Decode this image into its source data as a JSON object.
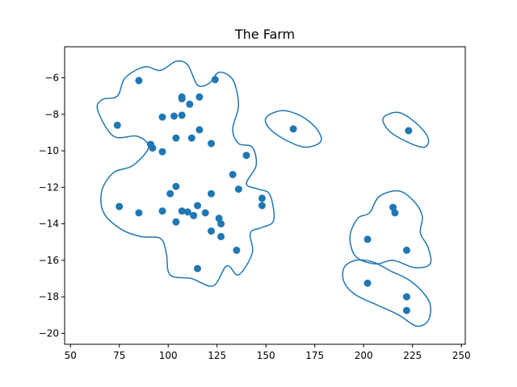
{
  "chart_data": {
    "type": "scatter",
    "title": "The Farm",
    "xlabel": "",
    "ylabel": "",
    "xlim": [
      47,
      252
    ],
    "ylim": [
      -20.6,
      -4.3
    ],
    "xticks": [
      50,
      75,
      100,
      125,
      150,
      175,
      200,
      225,
      250
    ],
    "yticks": [
      -6,
      -8,
      -10,
      -12,
      -14,
      -16,
      -18,
      -20
    ],
    "grid": false,
    "color": "#1f77b4",
    "points": [
      [
        85,
        -6.15
      ],
      [
        124,
        -6.1
      ],
      [
        107,
        -7.05
      ],
      [
        107,
        -7.15
      ],
      [
        116,
        -7.05
      ],
      [
        111,
        -7.45
      ],
      [
        97,
        -8.15
      ],
      [
        103,
        -8.1
      ],
      [
        107,
        -8.05
      ],
      [
        74,
        -8.6
      ],
      [
        116,
        -8.85
      ],
      [
        104,
        -9.3
      ],
      [
        112,
        -9.3
      ],
      [
        91,
        -9.65
      ],
      [
        92,
        -9.85
      ],
      [
        97,
        -10.05
      ],
      [
        122,
        -9.6
      ],
      [
        140,
        -10.25
      ],
      [
        133,
        -11.3
      ],
      [
        104,
        -11.95
      ],
      [
        136,
        -12.1
      ],
      [
        101,
        -12.35
      ],
      [
        122,
        -12.35
      ],
      [
        148,
        -12.6
      ],
      [
        148,
        -13.0
      ],
      [
        75,
        -13.05
      ],
      [
        85,
        -13.4
      ],
      [
        97,
        -13.3
      ],
      [
        107,
        -13.3
      ],
      [
        110,
        -13.35
      ],
      [
        115,
        -13.0
      ],
      [
        119,
        -13.4
      ],
      [
        113,
        -13.55
      ],
      [
        126,
        -13.7
      ],
      [
        127,
        -14.0
      ],
      [
        104,
        -13.9
      ],
      [
        122,
        -14.4
      ],
      [
        127,
        -14.7
      ],
      [
        135,
        -15.45
      ],
      [
        115,
        -16.45
      ],
      [
        164,
        -8.8
      ],
      [
        223,
        -8.9
      ],
      [
        215,
        -13.1
      ],
      [
        216,
        -13.4
      ],
      [
        202,
        -14.85
      ],
      [
        222,
        -15.45
      ],
      [
        202,
        -17.25
      ],
      [
        222,
        -18.0
      ],
      [
        222,
        -18.75
      ]
    ],
    "contours": [
      [
        [
          64,
          -7.8
        ],
        [
          66,
          -7.2
        ],
        [
          74,
          -7.0
        ],
        [
          78,
          -6.0
        ],
        [
          88,
          -5.4
        ],
        [
          96,
          -5.6
        ],
        [
          104,
          -5.1
        ],
        [
          110,
          -5.3
        ],
        [
          115,
          -6.4
        ],
        [
          121,
          -6.3
        ],
        [
          126,
          -5.7
        ],
        [
          133,
          -6.1
        ],
        [
          136,
          -7.5
        ],
        [
          133,
          -8.8
        ],
        [
          136,
          -9.6
        ],
        [
          143,
          -9.8
        ],
        [
          145,
          -10.8
        ],
        [
          140,
          -11.8
        ],
        [
          146,
          -12.1
        ],
        [
          152,
          -12.4
        ],
        [
          154,
          -13.8
        ],
        [
          148,
          -14.2
        ],
        [
          142,
          -14.5
        ],
        [
          143,
          -15.6
        ],
        [
          136,
          -16.8
        ],
        [
          130,
          -16.3
        ],
        [
          123,
          -17.4
        ],
        [
          112,
          -17.0
        ],
        [
          101,
          -16.8
        ],
        [
          99,
          -15.6
        ],
        [
          96,
          -14.8
        ],
        [
          86,
          -14.7
        ],
        [
          76,
          -14.3
        ],
        [
          67,
          -13.4
        ],
        [
          66,
          -12.2
        ],
        [
          72,
          -11.2
        ],
        [
          82,
          -10.8
        ],
        [
          90,
          -9.8
        ],
        [
          84,
          -9.2
        ],
        [
          72,
          -9.2
        ]
      ],
      [
        [
          150,
          -8.2
        ],
        [
          158,
          -7.8
        ],
        [
          168,
          -8.1
        ],
        [
          176,
          -8.8
        ],
        [
          178,
          -9.5
        ],
        [
          170,
          -9.8
        ],
        [
          160,
          -9.4
        ],
        [
          152,
          -8.8
        ]
      ],
      [
        [
          210,
          -8.2
        ],
        [
          218,
          -7.9
        ],
        [
          227,
          -8.5
        ],
        [
          233,
          -9.3
        ],
        [
          231,
          -9.8
        ],
        [
          222,
          -9.5
        ],
        [
          213,
          -8.9
        ]
      ],
      [
        [
          208,
          -12.5
        ],
        [
          218,
          -12.2
        ],
        [
          226,
          -12.8
        ],
        [
          230,
          -13.6
        ],
        [
          229,
          -14.5
        ],
        [
          233,
          -15.3
        ],
        [
          234,
          -16.2
        ],
        [
          226,
          -16.4
        ],
        [
          215,
          -16.0
        ],
        [
          206,
          -16.2
        ],
        [
          196,
          -15.8
        ],
        [
          193,
          -14.7
        ],
        [
          197,
          -13.7
        ],
        [
          203,
          -13.4
        ]
      ],
      [
        [
          190,
          -16.4
        ],
        [
          196,
          -16.0
        ],
        [
          205,
          -16.1
        ],
        [
          214,
          -16.6
        ],
        [
          222,
          -17.0
        ],
        [
          229,
          -17.6
        ],
        [
          234,
          -18.4
        ],
        [
          233,
          -19.3
        ],
        [
          227,
          -19.6
        ],
        [
          218,
          -19.0
        ],
        [
          208,
          -18.5
        ],
        [
          196,
          -17.9
        ],
        [
          190,
          -17.2
        ]
      ]
    ]
  }
}
